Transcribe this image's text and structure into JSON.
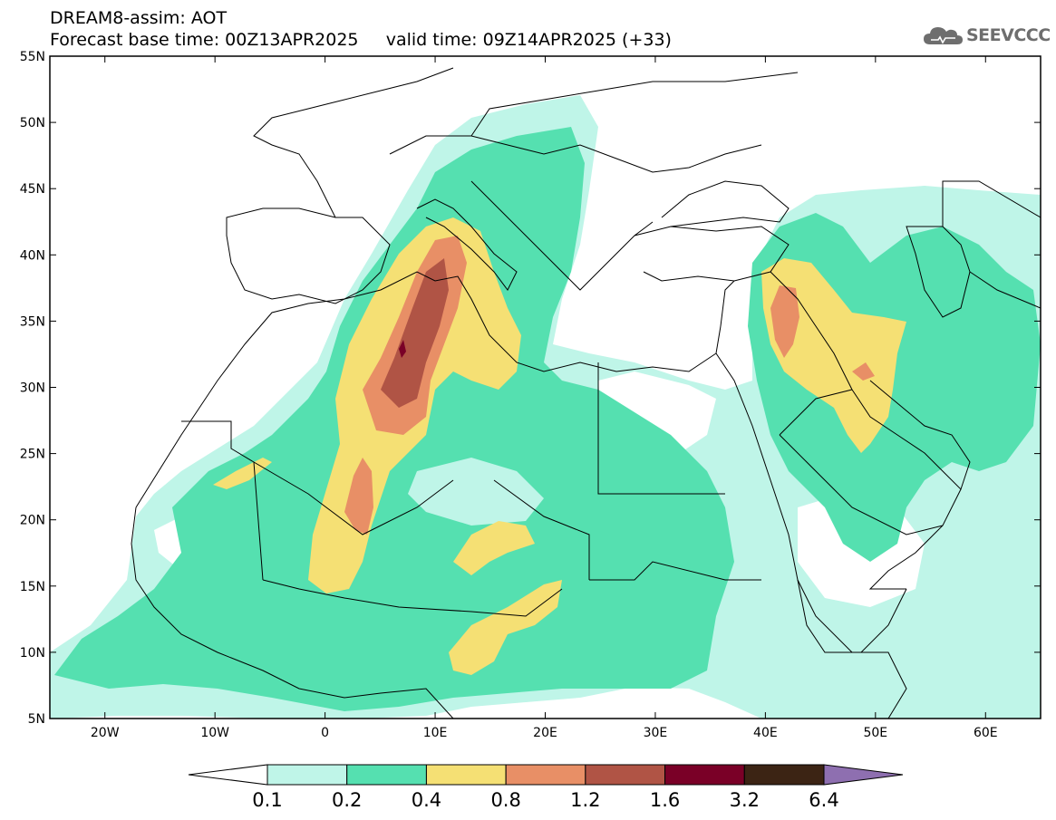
{
  "header": {
    "title_line1": "DREAM8-assim: AOT",
    "title_line2": "Forecast base time: 00Z13APR2025     valid time: 09Z14APR2025 (+33)"
  },
  "logo": {
    "icon": "cloud-logo-icon",
    "text": "SEEVCCC"
  },
  "map": {
    "lon_range": [
      -25,
      65
    ],
    "lat_range": [
      5,
      55
    ],
    "lat_ticks": [
      {
        "value": 55,
        "label": "55N"
      },
      {
        "value": 50,
        "label": "50N"
      },
      {
        "value": 45,
        "label": "45N"
      },
      {
        "value": 40,
        "label": "40N"
      },
      {
        "value": 35,
        "label": "35N"
      },
      {
        "value": 30,
        "label": "30N"
      },
      {
        "value": 25,
        "label": "25N"
      },
      {
        "value": 20,
        "label": "20N"
      },
      {
        "value": 15,
        "label": "15N"
      },
      {
        "value": 10,
        "label": "10N"
      },
      {
        "value": 5,
        "label": "5N"
      }
    ],
    "lon_ticks": [
      {
        "value": -20,
        "label": "20W"
      },
      {
        "value": -10,
        "label": "10W"
      },
      {
        "value": 0,
        "label": "0"
      },
      {
        "value": 10,
        "label": "10E"
      },
      {
        "value": 20,
        "label": "20E"
      },
      {
        "value": 30,
        "label": "30E"
      },
      {
        "value": 40,
        "label": "40E"
      },
      {
        "value": 50,
        "label": "50E"
      },
      {
        "value": 60,
        "label": "60E"
      }
    ]
  },
  "colorbar": {
    "colors": [
      "#ffffff",
      "#bff5e8",
      "#55e0b0",
      "#f5e074",
      "#e88f66",
      "#b05445",
      "#7a0027",
      "#3c2414",
      "#8e6fb0"
    ],
    "labels": [
      "0.1",
      "0.2",
      "0.4",
      "0.8",
      "1.2",
      "1.6",
      "3.2",
      "6.4"
    ]
  }
}
